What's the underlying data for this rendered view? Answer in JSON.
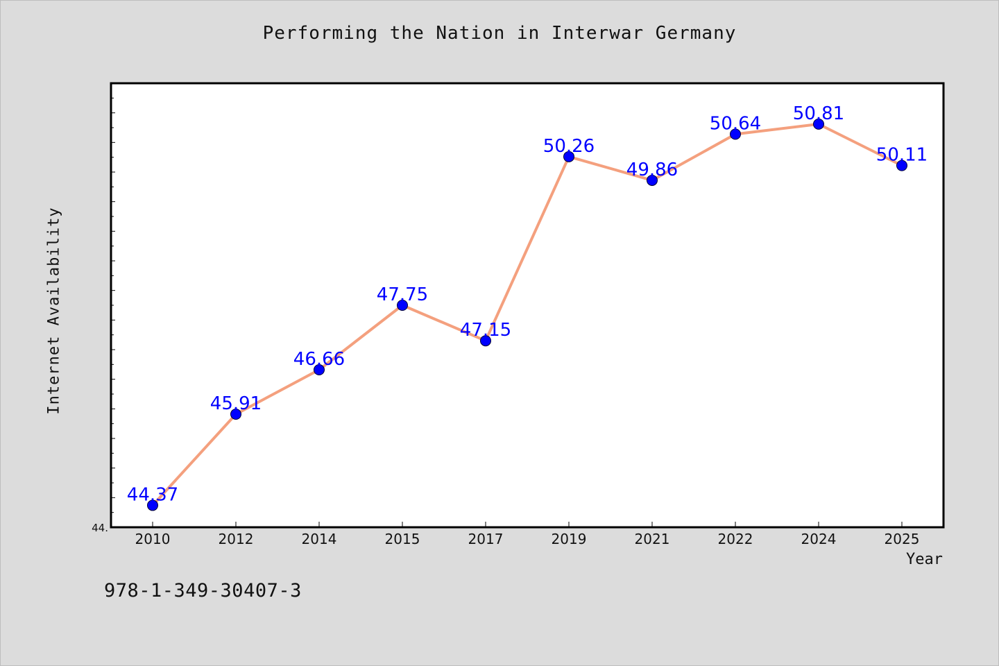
{
  "chart_data": {
    "type": "line",
    "title": "Performing the Nation in Interwar Germany",
    "xlabel": "Year",
    "ylabel": "Internet Availability",
    "categories": [
      "2010",
      "2012",
      "2014",
      "2015",
      "2017",
      "2019",
      "2021",
      "2022",
      "2024",
      "2025"
    ],
    "series": [
      {
        "values": [
          44.37,
          45.91,
          46.66,
          47.75,
          47.15,
          50.26,
          49.86,
          50.64,
          50.81,
          50.11
        ],
        "labels": [
          "44.37",
          "45.91",
          "46.66",
          "47.75",
          "47.15",
          "50.26",
          "49.86",
          "50.64",
          "50.81",
          "50.11"
        ],
        "line_color": "#f4a07e",
        "marker_color": "#0000ff",
        "label_color": "#0000ff"
      }
    ],
    "ylim": [
      44.0,
      51.5
    ],
    "y_tick_label": "44.",
    "grid": false,
    "legend": "none"
  },
  "footer": {
    "isbn": "978-1-349-30407-3"
  }
}
